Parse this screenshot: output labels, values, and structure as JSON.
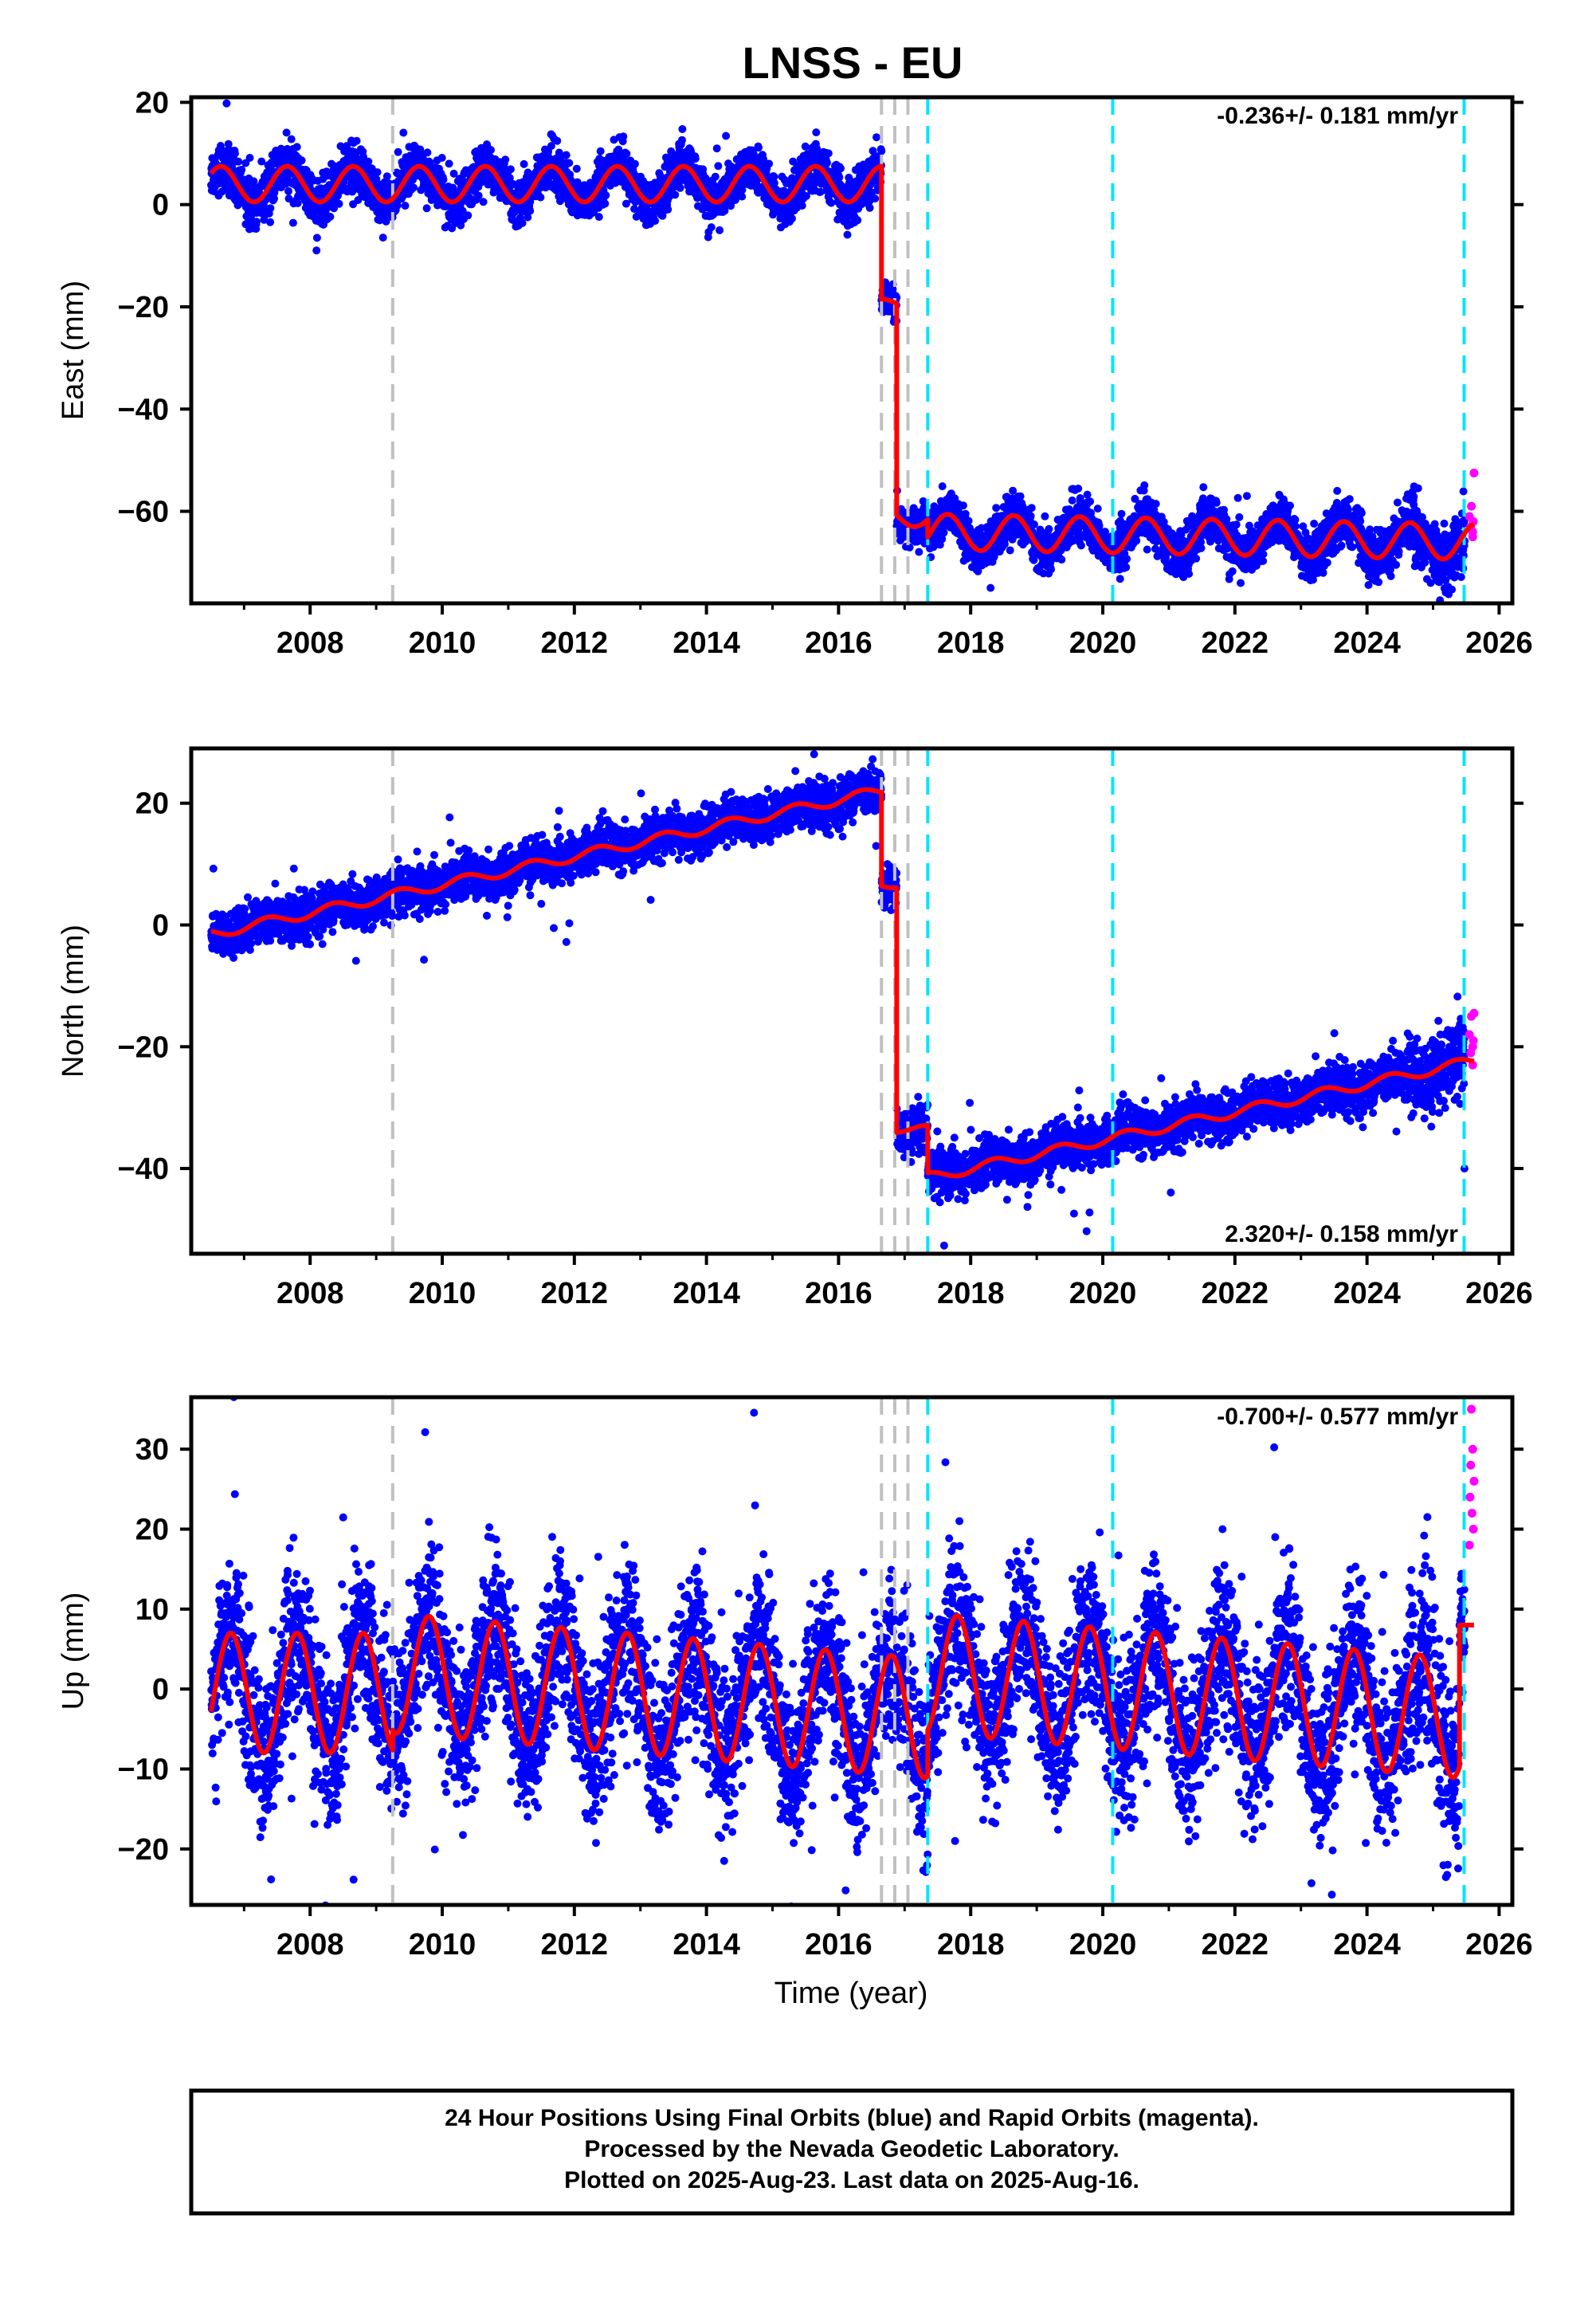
{
  "title": "LNSS - EU",
  "xlabel": "Time (year)",
  "footer": {
    "line1": "24 Hour Positions Using Final Orbits (blue) and Rapid Orbits (magenta).",
    "line2": "Processed by the Nevada Geodetic Laboratory.",
    "line3": "Plotted on 2025-Aug-23. Last data on 2025-Aug-16."
  },
  "colors": {
    "final_orbits": "#0000ff",
    "rapid_orbits": "#ff00ff",
    "model": "#ff0000",
    "equipment_change": "#c0c0c0",
    "earthquake": "#00e5ff",
    "axis": "#000000"
  },
  "x_ticks": [
    "2008",
    "2010",
    "2012",
    "2014",
    "2016",
    "2018",
    "2020",
    "2022",
    "2024",
    "2026"
  ],
  "chart_data": [
    {
      "type": "scatter",
      "component": "East",
      "ylabel": "East (mm)",
      "rate_label": "-0.236+/- 0.181 mm/yr",
      "xlim": [
        2006.2,
        2026.2
      ],
      "ylim": [
        -78,
        21
      ],
      "y_ticks": [
        20,
        0,
        -20,
        -40,
        -60
      ],
      "gray_lines": [
        2009.25,
        2016.65,
        2016.85,
        2017.05
      ],
      "cyan_lines": [
        2017.35,
        2020.15,
        2025.47
      ],
      "segments": [
        {
          "t0": 2006.5,
          "t1": 2016.65,
          "offset": 4.0,
          "rate": 0.0,
          "amp": 3.5,
          "phase": 0.4,
          "spread": 2.2
        },
        {
          "t0": 2016.65,
          "t1": 2016.88,
          "offset": -19.5,
          "rate": 0.0,
          "amp": 1.0,
          "phase": 0.4,
          "spread": 1.5
        },
        {
          "t0": 2016.88,
          "t1": 2017.35,
          "offset": -61.0,
          "rate": 0.0,
          "amp": 2.0,
          "phase": 0.4,
          "spread": 2.0
        },
        {
          "t0": 2017.35,
          "t1": 2025.62,
          "offset": -64.0,
          "rate": -0.236,
          "amp": 3.5,
          "phase": 0.4,
          "spread": 2.2
        }
      ],
      "rapid": [
        [
          2025.55,
          -61
        ],
        [
          2025.57,
          -63
        ],
        [
          2025.58,
          -59
        ],
        [
          2025.6,
          -65
        ],
        [
          2025.61,
          -62
        ],
        [
          2025.62,
          -52.5
        ],
        [
          2025.6,
          -64
        ]
      ],
      "noise_tail": {
        "t0": 2024.6,
        "extra": 1.0
      }
    },
    {
      "type": "scatter",
      "component": "North",
      "ylabel": "North (mm)",
      "rate_label": "2.320+/- 0.158 mm/yr",
      "xlim": [
        2006.2,
        2026.2
      ],
      "ylim": [
        -54,
        29
      ],
      "y_ticks": [
        20,
        0,
        -20,
        -40
      ],
      "gray_lines": [
        2009.25,
        2016.65,
        2016.85,
        2017.05
      ],
      "cyan_lines": [
        2017.35,
        2020.15,
        2025.47
      ],
      "segments": [
        {
          "t0": 2006.5,
          "t1": 2016.65,
          "offset": -1.5,
          "rate": 2.32,
          "amp": 0.8,
          "phase": 0.1,
          "spread": 1.8
        },
        {
          "t0": 2016.65,
          "t1": 2016.88,
          "offset": 6.5,
          "rate": 0.0,
          "amp": 0.4,
          "phase": 0.1,
          "spread": 1.6
        },
        {
          "t0": 2016.88,
          "t1": 2017.35,
          "offset": -33.5,
          "rate": 0.0,
          "amp": 0.6,
          "phase": 0.1,
          "spread": 1.8
        },
        {
          "t0": 2017.35,
          "t1": 2025.62,
          "offset": -41.5,
          "rate": 2.32,
          "amp": 0.8,
          "phase": 0.1,
          "spread": 1.9
        }
      ],
      "rapid": [
        [
          2025.55,
          -18
        ],
        [
          2025.57,
          -21
        ],
        [
          2025.58,
          -15
        ],
        [
          2025.6,
          -23
        ],
        [
          2025.61,
          -19
        ],
        [
          2025.62,
          -14.5
        ],
        [
          2025.6,
          -20
        ]
      ],
      "noise_tail": {
        "t0": 2024.6,
        "extra": 1.0
      }
    },
    {
      "type": "scatter",
      "component": "Up",
      "ylabel": "Up (mm)",
      "rate_label": "-0.700+/- 0.577 mm/yr",
      "xlim": [
        2006.2,
        2026.2
      ],
      "ylim": [
        -27,
        36.5
      ],
      "y_ticks": [
        30,
        20,
        10,
        0,
        -10,
        -20
      ],
      "gray_lines": [
        2009.25,
        2016.65,
        2016.85,
        2017.05
      ],
      "cyan_lines": [
        2017.35,
        2020.15,
        2025.47
      ],
      "segments": [
        {
          "t0": 2006.5,
          "t1": 2009.25,
          "offset": -0.5,
          "rate": 0.0,
          "amp": 7.5,
          "phase": 0.55,
          "spread": 5.0
        },
        {
          "t0": 2009.25,
          "t1": 2017.35,
          "offset": 2.0,
          "rate": -0.7,
          "amp": 7.5,
          "phase": 0.55,
          "spread": 5.0
        },
        {
          "t0": 2017.35,
          "t1": 2025.4,
          "offset": 2.0,
          "rate": -0.7,
          "amp": 7.5,
          "phase": 0.55,
          "spread": 5.0
        },
        {
          "t0": 2025.4,
          "t1": 2025.62,
          "offset": 8.0,
          "rate": 0.0,
          "amp": 0.0,
          "phase": 0.55,
          "spread": 4.0
        }
      ],
      "rapid": [
        [
          2025.55,
          18
        ],
        [
          2025.56,
          24
        ],
        [
          2025.57,
          28
        ],
        [
          2025.58,
          35
        ],
        [
          2025.59,
          22
        ],
        [
          2025.6,
          30
        ],
        [
          2025.61,
          20
        ],
        [
          2025.62,
          26
        ]
      ],
      "noise_tail": {
        "t0": 2024.6,
        "extra": 1.0
      }
    }
  ]
}
